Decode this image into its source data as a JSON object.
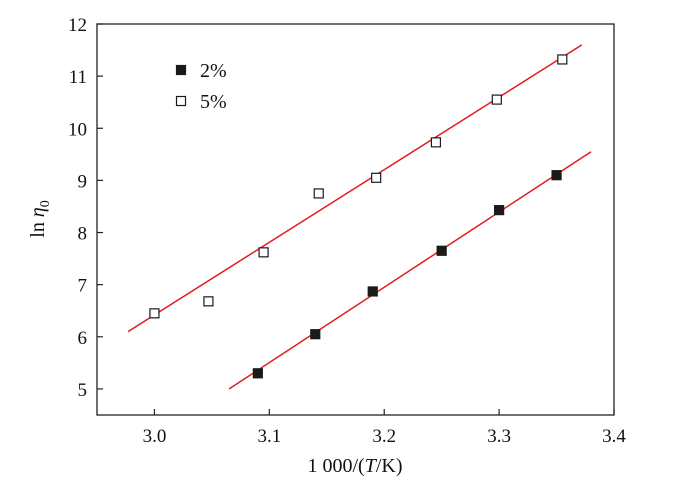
{
  "chart_data": {
    "type": "scatter",
    "xlabel": {
      "prefix": "1 000/(",
      "italic": "T",
      "suffix": "/K)"
    },
    "ylabel": {
      "prefix": "ln ",
      "italic": "η",
      "subscript": "0"
    },
    "xlim": [
      2.95,
      3.4
    ],
    "ylim": [
      4.5,
      12
    ],
    "x_ticks": [
      3.0,
      3.1,
      3.2,
      3.3,
      3.4
    ],
    "x_tick_labels": [
      "3.0",
      "3.1",
      "3.2",
      "3.3",
      "3.4"
    ],
    "y_ticks": [
      5,
      6,
      7,
      8,
      9,
      10,
      11,
      12
    ],
    "y_tick_labels": [
      "5",
      "6",
      "7",
      "8",
      "9",
      "10",
      "11",
      "12"
    ],
    "grid": false,
    "legend_position": "top-left",
    "fit_color": "#e41a1c",
    "series": [
      {
        "name": "2%",
        "marker": "filled-square",
        "points": [
          {
            "x": 3.09,
            "y": 5.3
          },
          {
            "x": 3.14,
            "y": 6.05
          },
          {
            "x": 3.19,
            "y": 6.87
          },
          {
            "x": 3.25,
            "y": 7.65
          },
          {
            "x": 3.3,
            "y": 8.43
          },
          {
            "x": 3.35,
            "y": 9.1
          }
        ],
        "fit_line": [
          {
            "x": 3.065,
            "y": 5.0
          },
          {
            "x": 3.38,
            "y": 9.55
          }
        ]
      },
      {
        "name": "5%",
        "marker": "open-square",
        "points": [
          {
            "x": 3.0,
            "y": 6.45
          },
          {
            "x": 3.047,
            "y": 6.68
          },
          {
            "x": 3.095,
            "y": 7.62
          },
          {
            "x": 3.143,
            "y": 8.75
          },
          {
            "x": 3.193,
            "y": 9.05
          },
          {
            "x": 3.245,
            "y": 9.73
          },
          {
            "x": 3.298,
            "y": 10.55
          },
          {
            "x": 3.355,
            "y": 11.32
          }
        ],
        "fit_line": [
          {
            "x": 2.977,
            "y": 6.1
          },
          {
            "x": 3.372,
            "y": 11.6
          }
        ]
      }
    ]
  }
}
